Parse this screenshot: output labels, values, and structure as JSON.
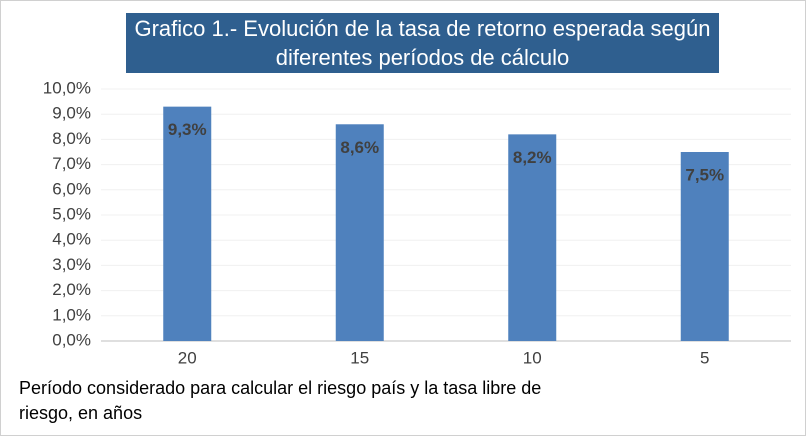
{
  "chart_data": {
    "type": "bar",
    "title": "Grafico 1.- Evolución de la tasa de retorno esperada según diferentes períodos de cálculo",
    "x_label": "Período considerado para calcular el riesgo país y la tasa libre de riesgo, en años",
    "categories": [
      "20",
      "15",
      "10",
      "5"
    ],
    "values": [
      9.3,
      8.6,
      8.2,
      7.5
    ],
    "value_labels": [
      "9,3%",
      "8,6%",
      "8,2%",
      "7,5%"
    ],
    "color": "#4f81bd",
    "ylim": [
      0,
      10
    ],
    "yticks": [
      {
        "value": 0,
        "label": "0,0%"
      },
      {
        "value": 1,
        "label": "1,0%"
      },
      {
        "value": 2,
        "label": "2,0%"
      },
      {
        "value": 3,
        "label": "3,0%"
      },
      {
        "value": 4,
        "label": "4,0%"
      },
      {
        "value": 5,
        "label": "5,0%"
      },
      {
        "value": 6,
        "label": "6,0%"
      },
      {
        "value": 7,
        "label": "7,0%"
      },
      {
        "value": 8,
        "label": "8,0%"
      },
      {
        "value": 9,
        "label": "9,0%"
      },
      {
        "value": 10,
        "label": "10,0%"
      }
    ],
    "grid": true
  }
}
